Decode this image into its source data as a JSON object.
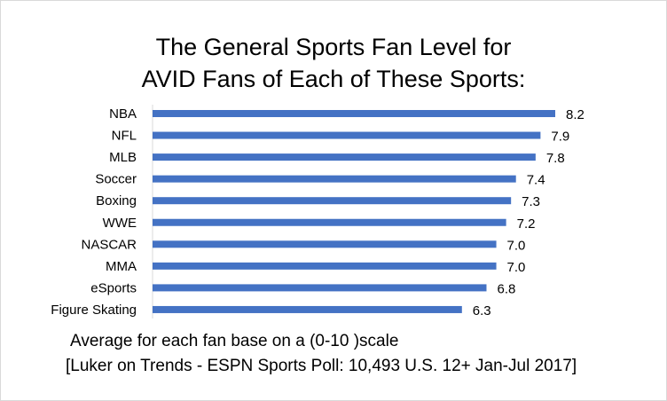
{
  "chart_data": {
    "type": "bar",
    "orientation": "horizontal",
    "title_line1": "The General Sports Fan Level for",
    "title_line2": "AVID Fans of Each of These Sports:",
    "categories": [
      "NBA",
      "NFL",
      "MLB",
      "Soccer",
      "Boxing",
      "WWE",
      "NASCAR",
      "MMA",
      "eSports",
      "Figure Skating"
    ],
    "values": [
      8.2,
      7.9,
      7.8,
      7.4,
      7.3,
      7.2,
      7.0,
      7.0,
      6.8,
      6.3
    ],
    "value_labels": [
      "8.2",
      "7.9",
      "7.8",
      "7.4",
      "7.3",
      "7.2",
      "7.0",
      "7.0",
      "6.8",
      "6.3"
    ],
    "xlim": [
      0,
      10
    ],
    "bar_color": "#4472c4",
    "grid": false,
    "legend": "none",
    "footnote_line1": "Average for each fan base on a (0-10 )scale",
    "footnote_line2": "[Luker on Trends - ESPN Sports Poll: 10,493 U.S. 12+ Jan-Jul 2017]"
  }
}
